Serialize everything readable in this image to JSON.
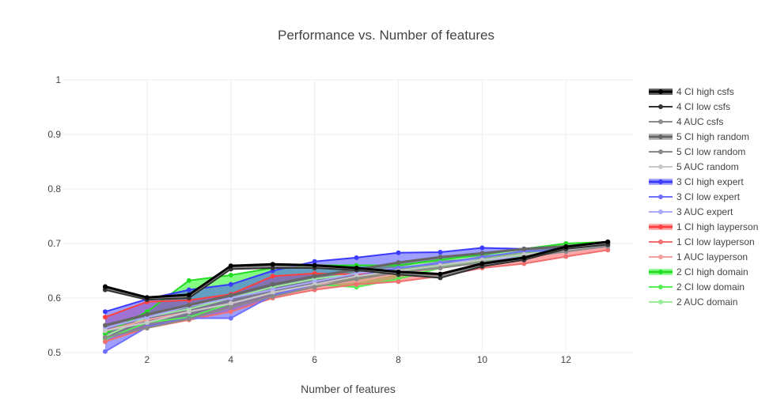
{
  "chart_data": {
    "type": "line",
    "title": "Performance vs. Number of features",
    "xlabel": "Number of features",
    "ylabel": "",
    "xlim": [
      0,
      13.6
    ],
    "ylim": [
      0.5,
      1.0
    ],
    "x_ticks": [
      2,
      4,
      6,
      8,
      10,
      12
    ],
    "y_ticks": [
      0.5,
      0.6,
      0.7,
      0.8,
      0.9,
      1
    ],
    "y_tick_labels": [
      "0.5",
      "0.6",
      "0.7",
      "0.8",
      "0.9",
      "1"
    ],
    "grid": true,
    "legend_position": "right",
    "x": [
      1,
      2,
      3,
      4,
      5,
      6,
      7,
      8,
      9,
      10,
      11,
      12,
      13
    ],
    "bands": [
      {
        "group": "domain",
        "fill": "#1fff1f",
        "opacity": 0.55,
        "high": "2 CI high domain",
        "low": "2 CI low domain"
      },
      {
        "group": "layperson",
        "fill": "#ff4d4d",
        "opacity": 0.5,
        "high": "1 CI high layperson",
        "low": "1 CI low layperson"
      },
      {
        "group": "expert",
        "fill": "#4040ff",
        "opacity": 0.5,
        "high": "3 CI high expert",
        "low": "3 CI low expert"
      },
      {
        "group": "random",
        "fill": "#7a7a7a",
        "opacity": 0.55,
        "high": "5 CI high random",
        "low": "5 CI low random"
      },
      {
        "group": "csfs",
        "fill": "#1a1a1a",
        "opacity": 0.6,
        "high": "4 CI high csfs",
        "low": "4 CI low csfs"
      }
    ],
    "series": [
      {
        "name": "2 AUC domain",
        "color": "#99ee99",
        "width": 2,
        "values": [
          0.53,
          0.565,
          0.58,
          0.6,
          0.62,
          0.635,
          0.645,
          0.655,
          0.67,
          0.675,
          0.69,
          0.7,
          0.7
        ]
      },
      {
        "name": "2 CI low domain",
        "color": "#55ee55",
        "width": 2,
        "values": [
          0.525,
          0.555,
          0.565,
          0.59,
          0.61,
          0.625,
          0.62,
          0.635,
          0.655,
          0.665,
          0.68,
          0.69,
          0.695
        ]
      },
      {
        "name": "2 CI high domain",
        "color": "#22dd22",
        "width": 2,
        "values": [
          0.535,
          0.575,
          0.632,
          0.642,
          0.655,
          0.66,
          0.66,
          0.66,
          0.67,
          0.68,
          0.69,
          0.7,
          0.703
        ]
      },
      {
        "name": "1 AUC layperson",
        "color": "#f0a0a0",
        "width": 2,
        "values": [
          0.54,
          0.56,
          0.575,
          0.59,
          0.61,
          0.625,
          0.63,
          0.645,
          0.655,
          0.665,
          0.675,
          0.685,
          0.695
        ]
      },
      {
        "name": "1 CI low layperson",
        "color": "#f07070",
        "width": 2,
        "values": [
          0.52,
          0.545,
          0.56,
          0.575,
          0.6,
          0.615,
          0.625,
          0.63,
          0.64,
          0.655,
          0.663,
          0.676,
          0.688
        ]
      },
      {
        "name": "1 CI high layperson",
        "color": "#ff4040",
        "width": 2,
        "values": [
          0.565,
          0.593,
          0.596,
          0.607,
          0.64,
          0.645,
          0.643,
          0.65,
          0.642,
          0.665,
          0.675,
          0.69,
          0.7
        ]
      },
      {
        "name": "3 AUC expert",
        "color": "#aaaaff",
        "width": 2,
        "values": [
          0.545,
          0.565,
          0.585,
          0.6,
          0.615,
          0.63,
          0.645,
          0.655,
          0.665,
          0.67,
          0.675,
          0.685,
          0.695
        ]
      },
      {
        "name": "3 CI low expert",
        "color": "#7070ff",
        "width": 2,
        "values": [
          0.502,
          0.547,
          0.563,
          0.563,
          0.605,
          0.625,
          0.64,
          0.655,
          0.664,
          0.675,
          0.686,
          0.687,
          0.7
        ]
      },
      {
        "name": "3 CI high expert",
        "color": "#3a3aff",
        "width": 2,
        "values": [
          0.575,
          0.598,
          0.615,
          0.625,
          0.65,
          0.667,
          0.674,
          0.683,
          0.684,
          0.692,
          0.69,
          0.693,
          0.702
        ]
      },
      {
        "name": "5 AUC random",
        "color": "#c8c8c8",
        "width": 2,
        "values": [
          0.54,
          0.555,
          0.575,
          0.59,
          0.61,
          0.625,
          0.64,
          0.65,
          0.66,
          0.67,
          0.68,
          0.688,
          0.697
        ]
      },
      {
        "name": "5 CI low random",
        "color": "#8a8a8a",
        "width": 2,
        "values": [
          0.528,
          0.545,
          0.562,
          0.583,
          0.603,
          0.62,
          0.635,
          0.647,
          0.655,
          0.665,
          0.675,
          0.685,
          0.695
        ]
      },
      {
        "name": "5 CI high random",
        "color": "#666666",
        "width": 3,
        "values": [
          0.55,
          0.57,
          0.587,
          0.605,
          0.625,
          0.64,
          0.652,
          0.665,
          0.675,
          0.682,
          0.69,
          0.695,
          0.702
        ]
      },
      {
        "name": "4 AUC csfs",
        "color": "#8c8c8c",
        "width": 2,
        "values": [
          0.618,
          0.598,
          0.603,
          0.655,
          0.657,
          0.657,
          0.653,
          0.645,
          0.64,
          0.66,
          0.672,
          0.692,
          0.7
        ]
      },
      {
        "name": "4 CI low csfs",
        "color": "#333333",
        "width": 2,
        "values": [
          0.615,
          0.597,
          0.6,
          0.653,
          0.655,
          0.655,
          0.651,
          0.643,
          0.637,
          0.658,
          0.67,
          0.69,
          0.698
        ]
      },
      {
        "name": "4 CI high csfs",
        "color": "#000000",
        "width": 3,
        "values": [
          0.621,
          0.601,
          0.606,
          0.659,
          0.662,
          0.66,
          0.655,
          0.648,
          0.644,
          0.663,
          0.674,
          0.694,
          0.703
        ]
      }
    ],
    "legend": [
      {
        "label": "4 CI high csfs",
        "color": "#000000",
        "fill": "#222222",
        "thick": true
      },
      {
        "label": "4 CI low csfs",
        "color": "#333333",
        "fill": "",
        "thick": false
      },
      {
        "label": "4 AUC csfs",
        "color": "#8c8c8c",
        "fill": "",
        "thick": false
      },
      {
        "label": "5 CI high random",
        "color": "#666666",
        "fill": "#999999",
        "thick": true
      },
      {
        "label": "5 CI low random",
        "color": "#8a8a8a",
        "fill": "",
        "thick": false
      },
      {
        "label": "5 AUC random",
        "color": "#c8c8c8",
        "fill": "",
        "thick": false
      },
      {
        "label": "3 CI high expert",
        "color": "#3a3aff",
        "fill": "#8080ff",
        "thick": true
      },
      {
        "label": "3 CI low expert",
        "color": "#7070ff",
        "fill": "",
        "thick": false
      },
      {
        "label": "3 AUC expert",
        "color": "#aaaaff",
        "fill": "",
        "thick": false
      },
      {
        "label": "1 CI high layperson",
        "color": "#ff4040",
        "fill": "#ff8a8a",
        "thick": true
      },
      {
        "label": "1 CI low layperson",
        "color": "#f07070",
        "fill": "",
        "thick": false
      },
      {
        "label": "1 AUC layperson",
        "color": "#f0a0a0",
        "fill": "",
        "thick": false
      },
      {
        "label": "2 CI high domain",
        "color": "#22dd22",
        "fill": "#66ff66",
        "thick": true
      },
      {
        "label": "2 CI low domain",
        "color": "#55ee55",
        "fill": "",
        "thick": false
      },
      {
        "label": "2 AUC domain",
        "color": "#99ee99",
        "fill": "",
        "thick": false
      }
    ]
  }
}
